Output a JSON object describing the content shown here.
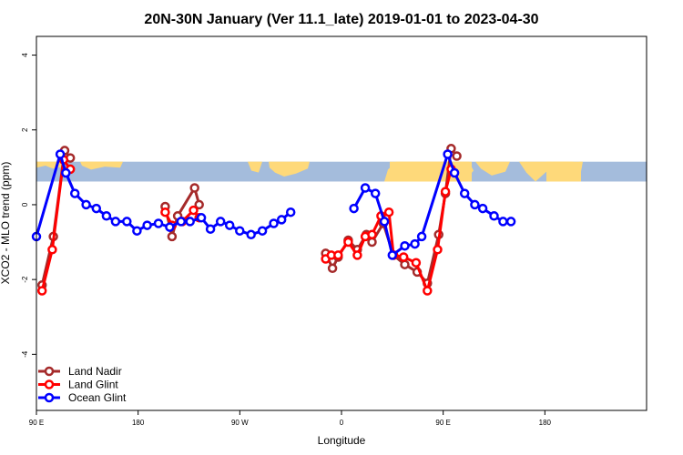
{
  "chart_data": {
    "type": "line",
    "title": "20N-30N January (Ver 11.1_late)   2019-01-01 to 2023-04-30",
    "xlabel": "Longitude",
    "ylabel": "XCO2 - MLO trend (ppm)",
    "xlim": [
      -90,
      180
    ],
    "ylim": [
      -5.5,
      4.5
    ],
    "x_ticks": [
      {
        "value": -90,
        "label": "90 E"
      },
      {
        "value": -45,
        "label": "180"
      },
      {
        "value": 0,
        "label": "90 W"
      },
      {
        "value": 45,
        "label": "0"
      },
      {
        "value": 90,
        "label": "90 E"
      },
      {
        "value": 135,
        "label": "180"
      }
    ],
    "y_ticks": [
      {
        "value": 4,
        "label": "4"
      },
      {
        "value": 2,
        "label": "2"
      },
      {
        "value": 0,
        "label": "0"
      },
      {
        "value": -2,
        "label": "-2"
      },
      {
        "value": -4,
        "label": "-4"
      }
    ],
    "map_strip": {
      "y_top": 1.15,
      "y_bottom": 0.62,
      "ocean_color": "#a4bcdc",
      "land_color": "#fed97a"
    },
    "legend": {
      "placement": "bottom-left"
    },
    "series": [
      {
        "name": "Land Nadir",
        "color": "#a52a2a",
        "segments": [
          [
            [
              -87.5,
              -2.15
            ],
            [
              -82.5,
              -0.85
            ],
            [
              -77.5,
              1.45
            ],
            [
              -75,
              1.25
            ]
          ],
          [
            [
              -33,
              -0.05
            ],
            [
              -30,
              -0.85
            ],
            [
              -27.5,
              -0.3
            ],
            [
              -20,
              0.45
            ],
            [
              -18,
              0.0
            ]
          ],
          [
            [
              38,
              -1.3
            ],
            [
              41,
              -1.7
            ],
            [
              43.5,
              -1.4
            ],
            [
              48,
              -0.95
            ],
            [
              52,
              -1.2
            ],
            [
              56,
              -0.8
            ],
            [
              58.5,
              -1.0
            ],
            [
              63.5,
              -0.5
            ],
            [
              68,
              -1.35
            ],
            [
              73,
              -1.6
            ],
            [
              78.5,
              -1.8
            ],
            [
              83,
              -2.1
            ],
            [
              88,
              -0.8
            ],
            [
              91,
              0.3
            ],
            [
              93.5,
              1.5
            ],
            [
              96,
              1.3
            ]
          ]
        ]
      },
      {
        "name": "Land Glint",
        "color": "#ff0000",
        "segments": [
          [
            [
              -87.5,
              -2.3
            ],
            [
              -83,
              -1.2
            ],
            [
              -78,
              1.2
            ],
            [
              -75,
              0.95
            ]
          ],
          [
            [
              -33,
              -0.2
            ],
            [
              -30,
              -0.55
            ],
            [
              -25.5,
              -0.45
            ],
            [
              -20.5,
              -0.15
            ],
            [
              -18,
              -0.35
            ]
          ],
          [
            [
              38,
              -1.45
            ],
            [
              40.5,
              -1.35
            ],
            [
              43.5,
              -1.35
            ],
            [
              48,
              -1.0
            ],
            [
              52,
              -1.35
            ],
            [
              55.5,
              -0.85
            ],
            [
              58.5,
              -0.8
            ],
            [
              62.5,
              -0.3
            ],
            [
              66,
              -0.2
            ],
            [
              68,
              -1.35
            ],
            [
              72.5,
              -1.4
            ],
            [
              78,
              -1.55
            ],
            [
              83,
              -2.3
            ],
            [
              87.5,
              -1.2
            ],
            [
              91,
              0.35
            ],
            [
              93.5,
              0.95
            ]
          ]
        ]
      },
      {
        "name": "Ocean Glint",
        "color": "#0000ff",
        "segments": [
          [
            [
              -90,
              -0.85
            ],
            [
              -79.5,
              1.35
            ],
            [
              -77,
              0.85
            ],
            [
              -73,
              0.3
            ],
            [
              -68,
              0.0
            ],
            [
              -63.5,
              -0.1
            ],
            [
              -59,
              -0.3
            ],
            [
              -55,
              -0.45
            ],
            [
              -50,
              -0.45
            ],
            [
              -45.5,
              -0.7
            ],
            [
              -41,
              -0.55
            ],
            [
              -36,
              -0.5
            ],
            [
              -31,
              -0.6
            ],
            [
              -26,
              -0.45
            ],
            [
              -22,
              -0.45
            ],
            [
              -17,
              -0.35
            ],
            [
              -13,
              -0.65
            ],
            [
              -8.5,
              -0.45
            ],
            [
              -4.5,
              -0.55
            ],
            [
              0,
              -0.7
            ],
            [
              5,
              -0.8
            ],
            [
              10,
              -0.7
            ],
            [
              15,
              -0.5
            ],
            [
              18.5,
              -0.4
            ],
            [
              22.5,
              -0.2
            ]
          ],
          [
            [
              50.5,
              -0.1
            ],
            [
              55.5,
              0.45
            ],
            [
              60,
              0.3
            ],
            [
              64,
              -0.45
            ],
            [
              67.5,
              -1.35
            ],
            [
              73,
              -1.1
            ],
            [
              77.5,
              -1.05
            ],
            [
              80.5,
              -0.85
            ],
            [
              92,
              1.35
            ],
            [
              95,
              0.85
            ],
            [
              99.5,
              0.3
            ],
            [
              104,
              0.0
            ],
            [
              107.5,
              -0.1
            ],
            [
              112.5,
              -0.3
            ],
            [
              116.5,
              -0.45
            ],
            [
              120,
              -0.45
            ]
          ]
        ]
      }
    ]
  }
}
